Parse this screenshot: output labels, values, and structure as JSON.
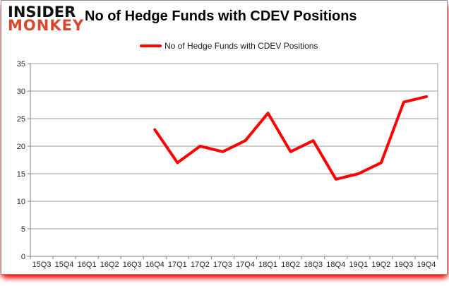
{
  "logo": {
    "line1": "INSIDER",
    "line2": "MONKEY"
  },
  "header": {
    "title": "No of Hedge Funds with CDEV Positions"
  },
  "legend": {
    "label": "No of Hedge Funds with CDEV Positions",
    "swatch_color": "#fe0000"
  },
  "chart_data": {
    "type": "line",
    "title": "No of Hedge Funds with CDEV Positions",
    "categories": [
      "15Q3",
      "15Q4",
      "16Q1",
      "16Q2",
      "16Q3",
      "16Q4",
      "17Q1",
      "17Q2",
      "17Q3",
      "17Q4",
      "18Q1",
      "18Q2",
      "18Q3",
      "18Q4",
      "19Q1",
      "19Q2",
      "19Q3",
      "19Q4"
    ],
    "series": [
      {
        "name": "No of Hedge Funds with CDEV Positions",
        "color": "#fe0000",
        "values": [
          null,
          null,
          null,
          null,
          null,
          23,
          17,
          20,
          19,
          21,
          26,
          19,
          21,
          14,
          15,
          17,
          28,
          29
        ]
      }
    ],
    "ylim": [
      0,
      35
    ],
    "ytick_step": 5,
    "grid": true,
    "legend_position": "top",
    "xlabel": "",
    "ylabel": ""
  },
  "colors": {
    "grid": "#9b9b9b",
    "axis": "#7f7f7f",
    "tick_text": "#262626",
    "line": "#fe0000",
    "logo_accent": "#d6492f",
    "border_glow": "#ff0000"
  }
}
